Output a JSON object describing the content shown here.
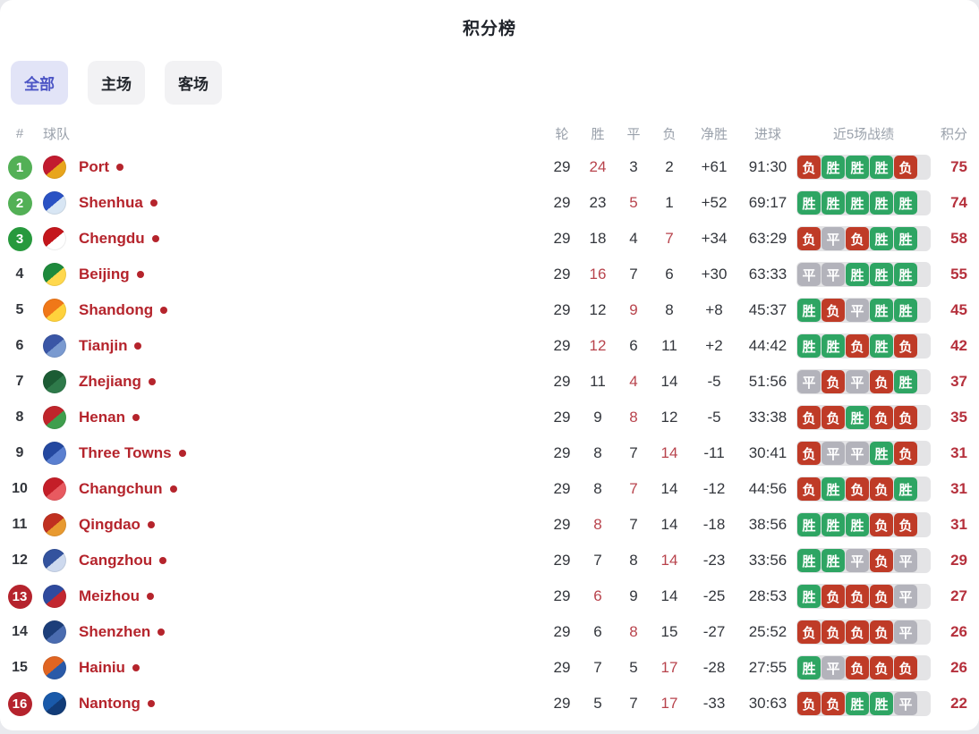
{
  "title": "积分榜",
  "tabs": [
    {
      "label": "全部",
      "active": true
    },
    {
      "label": "主场",
      "active": false
    },
    {
      "label": "客场",
      "active": false
    }
  ],
  "result_labels": {
    "W": "胜",
    "D": "平",
    "L": "负"
  },
  "colors": {
    "rank_badges": {
      "green": "#53b056",
      "dark-green": "#27993d",
      "red": "#b5232d"
    },
    "results": {
      "W": "#2ea563",
      "D": "#b3b3bb",
      "L": "#bf3b27"
    },
    "strip_bg": "#e4e4e6",
    "team_name": "#b5242c",
    "stat_highlight": "#b8434c",
    "points": "#b5303c",
    "tab_active_bg": "#e2e4f7",
    "tab_active_text": "#4c55c5"
  },
  "table": {
    "headers": {
      "rank": "#",
      "team": "球队",
      "round": "轮",
      "win": "胜",
      "draw": "平",
      "loss": "负",
      "gd": "净胜",
      "goals": "进球",
      "last5": "近5场战绩",
      "points": "积分"
    },
    "rows": [
      {
        "rank": 1,
        "badge": "green",
        "team": "Port",
        "logo_colors": [
          "#c21b2f",
          "#e8a51c"
        ],
        "round": 29,
        "win": 24,
        "draw": 3,
        "loss": 2,
        "highlight": "win",
        "gd": "+61",
        "goals": "91:30",
        "last5": [
          "L",
          "W",
          "W",
          "W",
          "L"
        ],
        "points": 75
      },
      {
        "rank": 2,
        "badge": "green",
        "team": "Shenhua",
        "logo_colors": [
          "#2a52c4",
          "#d8e6f4"
        ],
        "round": 29,
        "win": 23,
        "draw": 5,
        "loss": 1,
        "highlight": "draw",
        "gd": "+52",
        "goals": "69:17",
        "last5": [
          "W",
          "W",
          "W",
          "W",
          "W"
        ],
        "points": 74
      },
      {
        "rank": 3,
        "badge": "dark-green",
        "team": "Chengdu",
        "logo_colors": [
          "#c4161c",
          "#ffffff"
        ],
        "round": 29,
        "win": 18,
        "draw": 4,
        "loss": 7,
        "highlight": "loss",
        "gd": "+34",
        "goals": "63:29",
        "last5": [
          "L",
          "D",
          "L",
          "W",
          "W"
        ],
        "points": 58
      },
      {
        "rank": 4,
        "badge": null,
        "team": "Beijing",
        "logo_colors": [
          "#1e8a3c",
          "#ffd84d"
        ],
        "round": 29,
        "win": 16,
        "draw": 7,
        "loss": 6,
        "highlight": "win",
        "gd": "+30",
        "goals": "63:33",
        "last5": [
          "D",
          "D",
          "W",
          "W",
          "W"
        ],
        "points": 55
      },
      {
        "rank": 5,
        "badge": null,
        "team": "Shandong",
        "logo_colors": [
          "#f07818",
          "#ffd23c"
        ],
        "round": 29,
        "win": 12,
        "draw": 9,
        "loss": 8,
        "highlight": "draw",
        "gd": "+8",
        "goals": "45:37",
        "last5": [
          "W",
          "L",
          "D",
          "W",
          "W"
        ],
        "points": 45
      },
      {
        "rank": 6,
        "badge": null,
        "team": "Tianjin",
        "logo_colors": [
          "#3a56a6",
          "#7a9ad0"
        ],
        "round": 29,
        "win": 12,
        "draw": 6,
        "loss": 11,
        "highlight": "win",
        "gd": "+2",
        "goals": "44:42",
        "last5": [
          "W",
          "W",
          "L",
          "W",
          "L"
        ],
        "points": 42
      },
      {
        "rank": 7,
        "badge": null,
        "team": "Zhejiang",
        "logo_colors": [
          "#1c5c34",
          "#2e7a4a"
        ],
        "round": 29,
        "win": 11,
        "draw": 4,
        "loss": 14,
        "highlight": "draw",
        "gd": "-5",
        "goals": "51:56",
        "last5": [
          "D",
          "L",
          "D",
          "L",
          "W"
        ],
        "points": 37
      },
      {
        "rank": 8,
        "badge": null,
        "team": "Henan",
        "logo_colors": [
          "#c0252b",
          "#3f9e4d"
        ],
        "round": 29,
        "win": 9,
        "draw": 8,
        "loss": 12,
        "highlight": "draw",
        "gd": "-5",
        "goals": "33:38",
        "last5": [
          "L",
          "L",
          "W",
          "L",
          "L"
        ],
        "points": 35
      },
      {
        "rank": 9,
        "badge": null,
        "team": "Three Towns",
        "logo_colors": [
          "#2448a0",
          "#5a7fd0"
        ],
        "round": 29,
        "win": 8,
        "draw": 7,
        "loss": 14,
        "highlight": "loss",
        "gd": "-11",
        "goals": "30:41",
        "last5": [
          "L",
          "D",
          "D",
          "W",
          "L"
        ],
        "points": 31
      },
      {
        "rank": 10,
        "badge": null,
        "team": "Changchun",
        "logo_colors": [
          "#c41e28",
          "#e85a60"
        ],
        "round": 29,
        "win": 8,
        "draw": 7,
        "loss": 14,
        "highlight": "draw",
        "gd": "-12",
        "goals": "44:56",
        "last5": [
          "L",
          "W",
          "L",
          "L",
          "W"
        ],
        "points": 31
      },
      {
        "rank": 11,
        "badge": null,
        "team": "Qingdao",
        "logo_colors": [
          "#c03020",
          "#e89a30"
        ],
        "round": 29,
        "win": 8,
        "draw": 7,
        "loss": 14,
        "highlight": "win",
        "gd": "-18",
        "goals": "38:56",
        "last5": [
          "W",
          "W",
          "W",
          "L",
          "L"
        ],
        "points": 31
      },
      {
        "rank": 12,
        "badge": null,
        "team": "Cangzhou",
        "logo_colors": [
          "#33539e",
          "#cdd9ee"
        ],
        "round": 29,
        "win": 7,
        "draw": 8,
        "loss": 14,
        "highlight": "loss",
        "gd": "-23",
        "goals": "33:56",
        "last5": [
          "W",
          "W",
          "D",
          "L",
          "D"
        ],
        "points": 29
      },
      {
        "rank": 13,
        "badge": "red",
        "team": "Meizhou",
        "logo_colors": [
          "#2f4a9e",
          "#c22730"
        ],
        "round": 29,
        "win": 6,
        "draw": 9,
        "loss": 14,
        "highlight": "win",
        "gd": "-25",
        "goals": "28:53",
        "last5": [
          "W",
          "L",
          "L",
          "L",
          "D"
        ],
        "points": 27
      },
      {
        "rank": 14,
        "badge": null,
        "team": "Shenzhen",
        "logo_colors": [
          "#1c3e7a",
          "#4a6cb0"
        ],
        "round": 29,
        "win": 6,
        "draw": 8,
        "loss": 15,
        "highlight": "draw",
        "gd": "-27",
        "goals": "25:52",
        "last5": [
          "L",
          "L",
          "L",
          "L",
          "D"
        ],
        "points": 26
      },
      {
        "rank": 15,
        "badge": null,
        "team": "Hainiu",
        "logo_colors": [
          "#e06522",
          "#2a5aa8"
        ],
        "round": 29,
        "win": 7,
        "draw": 5,
        "loss": 17,
        "highlight": "loss",
        "gd": "-28",
        "goals": "27:55",
        "last5": [
          "W",
          "D",
          "L",
          "L",
          "L"
        ],
        "points": 26
      },
      {
        "rank": 16,
        "badge": "red",
        "team": "Nantong",
        "logo_colors": [
          "#1a5aaa",
          "#123c78"
        ],
        "round": 29,
        "win": 5,
        "draw": 7,
        "loss": 17,
        "highlight": "loss",
        "gd": "-33",
        "goals": "30:63",
        "last5": [
          "L",
          "L",
          "W",
          "W",
          "D"
        ],
        "points": 22
      }
    ]
  }
}
